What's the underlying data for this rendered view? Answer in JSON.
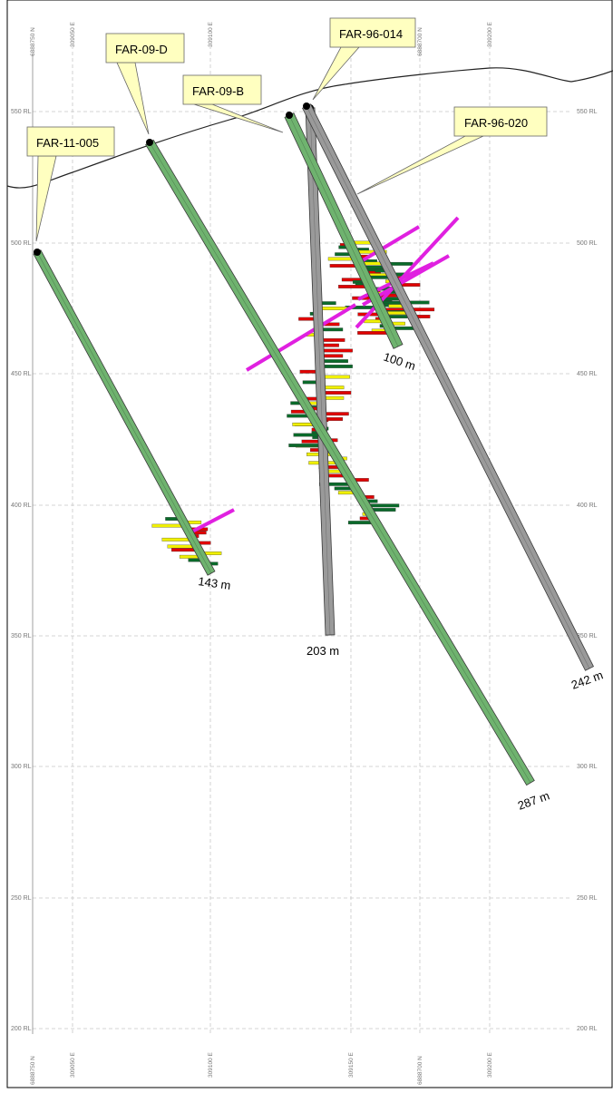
{
  "section": {
    "rl_labels": [
      "550 RL",
      "500 RL",
      "450 RL",
      "400 RL",
      "350 RL",
      "300 RL",
      "250 RL",
      "200 RL"
    ],
    "easting_labels": [
      "309050 E",
      "309100 E",
      "309150 E",
      "309200 E"
    ],
    "northing_labels": [
      "6888750 N",
      "6888700 N"
    ],
    "grid_color": "#c8c8c8"
  },
  "holes": [
    {
      "id": "FAR-11-005",
      "depth_label": "143 m",
      "color": "#6fb36f"
    },
    {
      "id": "FAR-09-D",
      "depth_label": "287 m",
      "color": "#6fb36f"
    },
    {
      "id": "FAR-09-B",
      "depth_label": "100 m",
      "color": "#6fb36f"
    },
    {
      "id": "FAR-96-014",
      "depth_label": "203 m",
      "color": "#9a9a9a"
    },
    {
      "id": "FAR-96-020",
      "depth_label": "242 m",
      "color": "#9a9a9a"
    }
  ],
  "legend_colors": {
    "callout_fill": "#ffffc0",
    "high_grade": "#e00000",
    "mid_grade": "#f0f000",
    "low_grade": "#0a6a2a",
    "magenta": "#e020e0"
  }
}
